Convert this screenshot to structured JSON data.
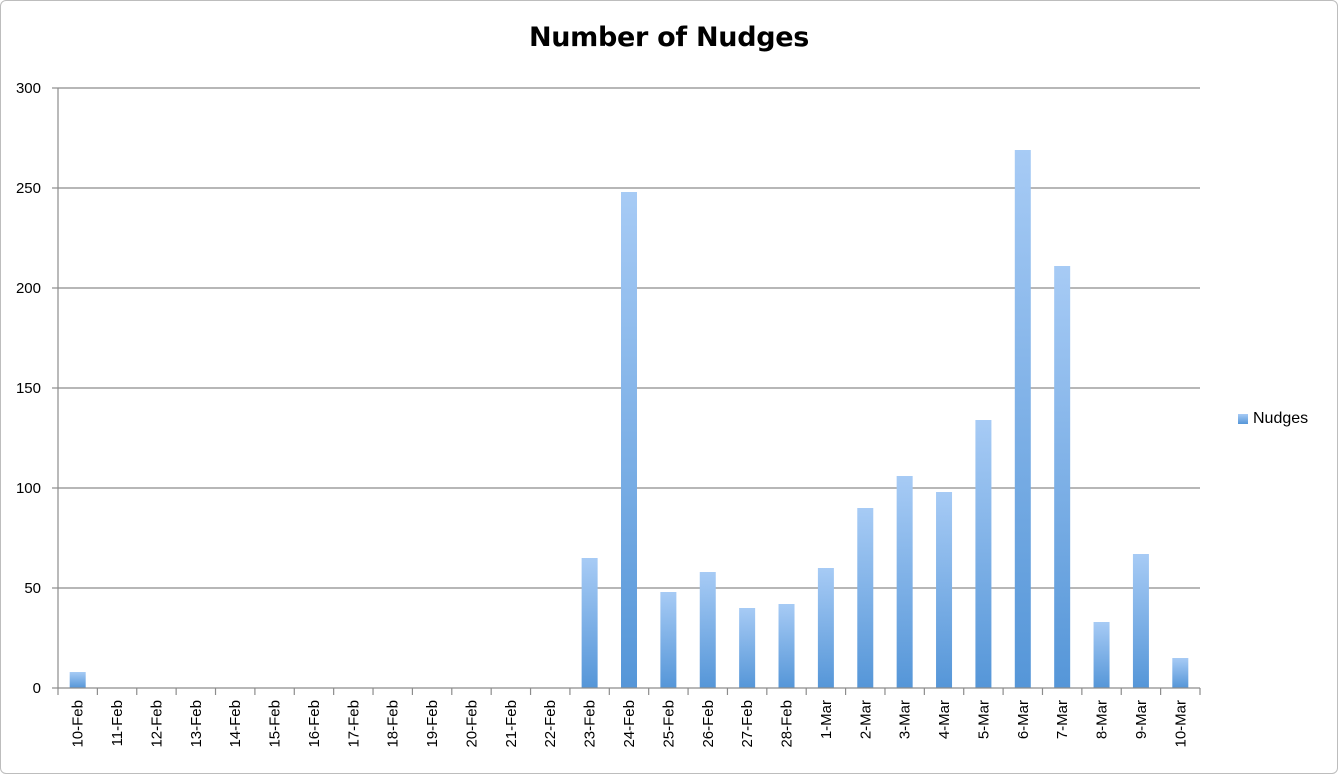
{
  "chart_data": {
    "type": "bar",
    "title": "Number of Nudges",
    "xlabel": "",
    "ylabel": "",
    "ylim": [
      0,
      300
    ],
    "yticks": [
      0,
      50,
      100,
      150,
      200,
      250,
      300
    ],
    "grid": true,
    "legend_position": "right",
    "categories": [
      "10-Feb",
      "11-Feb",
      "12-Feb",
      "13-Feb",
      "14-Feb",
      "15-Feb",
      "16-Feb",
      "17-Feb",
      "18-Feb",
      "19-Feb",
      "20-Feb",
      "21-Feb",
      "22-Feb",
      "23-Feb",
      "24-Feb",
      "25-Feb",
      "26-Feb",
      "27-Feb",
      "28-Feb",
      "1-Mar",
      "2-Mar",
      "3-Mar",
      "4-Mar",
      "5-Mar",
      "6-Mar",
      "7-Mar",
      "8-Mar",
      "9-Mar",
      "10-Mar"
    ],
    "series": [
      {
        "name": "Nudges",
        "color_top": "#a7cbf5",
        "color_bottom": "#5596d8",
        "values": [
          8,
          0,
          0,
          0,
          0,
          0,
          0,
          0,
          0,
          0,
          0,
          0,
          0,
          65,
          248,
          48,
          58,
          40,
          42,
          60,
          90,
          106,
          98,
          134,
          269,
          211,
          33,
          67,
          15
        ]
      }
    ]
  }
}
